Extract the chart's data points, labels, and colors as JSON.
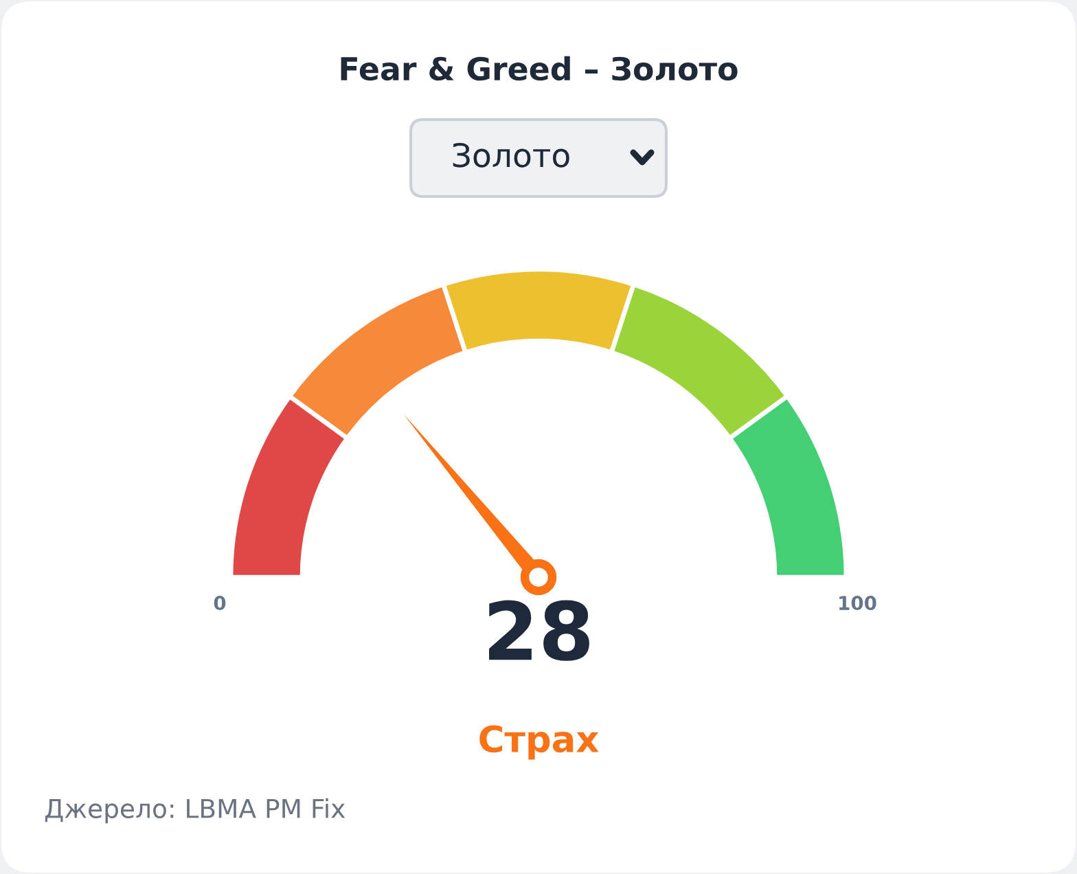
{
  "chart_data": {
    "type": "donut",
    "title": "Fear & Greed – Золото",
    "subtitle": "Золото",
    "categories": [
      null,
      null,
      null,
      null,
      null
    ],
    "values": [
      20,
      20,
      20,
      20,
      20
    ],
    "colors": [
      "#e04848",
      "#f68a3a",
      "#eec030",
      "#9ad43a",
      "#44cf75"
    ],
    "annotations": [
      "0",
      "100",
      "28",
      "Страх",
      "Джерело: LBMA PM Fix"
    ]
  }
}
